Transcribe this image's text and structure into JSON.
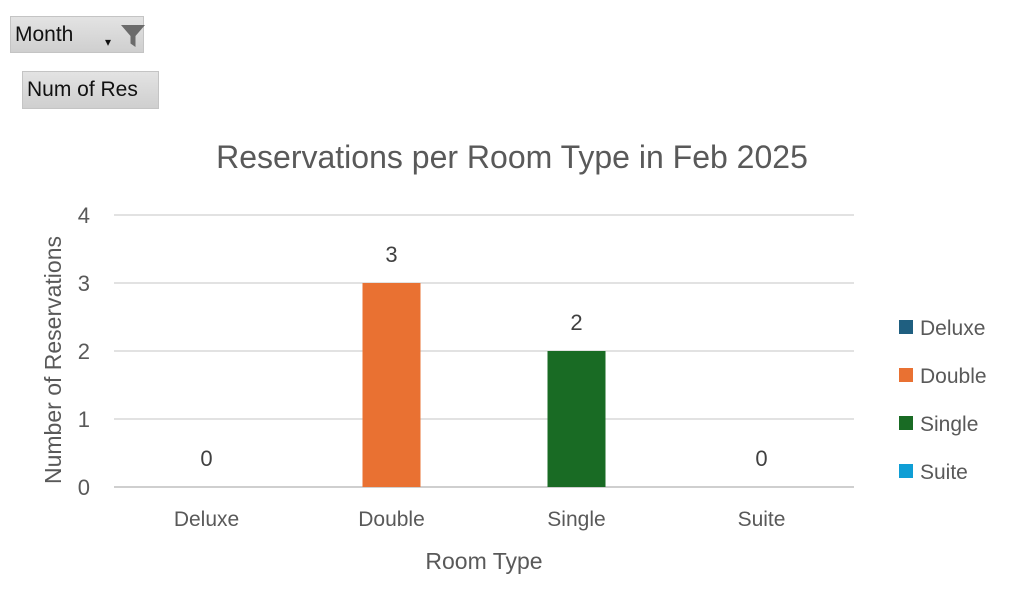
{
  "pivot": {
    "filter_label": "Month",
    "value_label": "Num of Res"
  },
  "chart_data": {
    "type": "bar",
    "title": "Reservations per Room Type in Feb 2025",
    "xlabel": "Room Type",
    "ylabel": "Number of Reservations",
    "categories": [
      "Deluxe",
      "Double",
      "Single",
      "Suite"
    ],
    "values": [
      0,
      3,
      2,
      0
    ],
    "bar_colors": [
      "#1f5f80",
      "#e97132",
      "#196b24",
      "#0f9ed5"
    ],
    "ylim": [
      0,
      4
    ],
    "yticks": [
      "0",
      "1",
      "2",
      "3",
      "4"
    ],
    "data_labels": [
      "0",
      "3",
      "2",
      "0"
    ],
    "grid": true,
    "legend_position": "right",
    "legend": [
      {
        "label": "Deluxe",
        "color": "#1f5f80"
      },
      {
        "label": "Double",
        "color": "#e97132"
      },
      {
        "label": "Single",
        "color": "#196b24"
      },
      {
        "label": "Suite",
        "color": "#0f9ed5"
      }
    ]
  }
}
